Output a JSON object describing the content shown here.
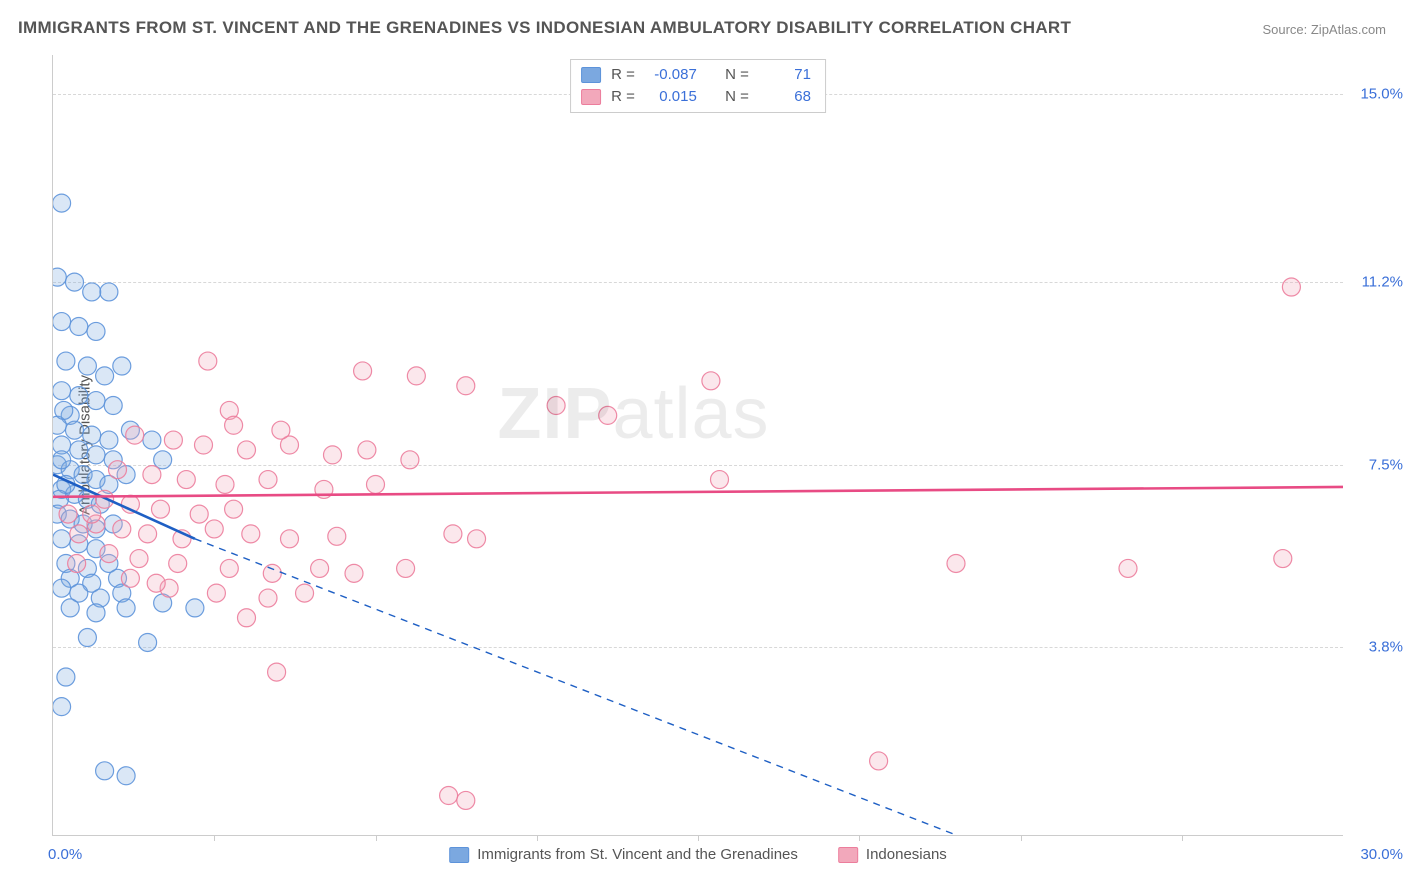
{
  "title": "IMMIGRANTS FROM ST. VINCENT AND THE GRENADINES VS INDONESIAN AMBULATORY DISABILITY CORRELATION CHART",
  "source": "Source: ZipAtlas.com",
  "watermark_a": "ZIP",
  "watermark_b": "atlas",
  "ylabel": "Ambulatory Disability",
  "chart": {
    "type": "scatter",
    "xlim": [
      0.0,
      30.0
    ],
    "ylim": [
      0.0,
      15.8
    ],
    "yticks": [
      {
        "v": 3.8,
        "label": "3.8%"
      },
      {
        "v": 7.5,
        "label": "7.5%"
      },
      {
        "v": 11.2,
        "label": "11.2%"
      },
      {
        "v": 15.0,
        "label": "15.0%"
      }
    ],
    "xtick_minor": [
      3.75,
      7.5,
      11.25,
      15.0,
      18.75,
      22.5,
      26.25
    ],
    "x_label_min": "0.0%",
    "x_label_max": "30.0%",
    "background_color": "#ffffff",
    "grid_color": "#d8d8d8",
    "marker_radius": 9,
    "marker_fill_opacity": 0.28,
    "marker_stroke_opacity": 0.9,
    "series": [
      {
        "name": "Immigrants from St. Vincent and the Grenadines",
        "color": "#7ba8e0",
        "stroke": "#5d93da",
        "line_color": "#1e5fc4",
        "R": "-0.087",
        "N": "71",
        "trend": {
          "x0": 0.0,
          "y0": 7.3,
          "x1_solid": 3.3,
          "y1_solid": 6.0,
          "x1_dash": 21.0,
          "y1_dash": 0.0
        },
        "points": [
          [
            0.2,
            12.8
          ],
          [
            0.1,
            11.3
          ],
          [
            0.5,
            11.2
          ],
          [
            0.9,
            11.0
          ],
          [
            1.3,
            11.0
          ],
          [
            0.2,
            10.4
          ],
          [
            0.6,
            10.3
          ],
          [
            1.0,
            10.2
          ],
          [
            0.3,
            9.6
          ],
          [
            0.8,
            9.5
          ],
          [
            1.2,
            9.3
          ],
          [
            1.6,
            9.5
          ],
          [
            0.2,
            9.0
          ],
          [
            0.6,
            8.9
          ],
          [
            1.0,
            8.8
          ],
          [
            1.4,
            8.7
          ],
          [
            0.4,
            8.5
          ],
          [
            0.1,
            8.3
          ],
          [
            0.5,
            8.2
          ],
          [
            0.9,
            8.1
          ],
          [
            1.3,
            8.0
          ],
          [
            1.8,
            8.2
          ],
          [
            0.2,
            7.9
          ],
          [
            0.6,
            7.8
          ],
          [
            1.0,
            7.7
          ],
          [
            1.4,
            7.6
          ],
          [
            0.1,
            7.5
          ],
          [
            0.4,
            7.4
          ],
          [
            0.7,
            7.3
          ],
          [
            1.0,
            7.2
          ],
          [
            1.3,
            7.1
          ],
          [
            1.7,
            7.3
          ],
          [
            0.2,
            7.0
          ],
          [
            0.5,
            6.9
          ],
          [
            0.8,
            6.8
          ],
          [
            1.1,
            6.7
          ],
          [
            0.1,
            6.5
          ],
          [
            0.4,
            6.4
          ],
          [
            0.7,
            6.3
          ],
          [
            1.0,
            6.2
          ],
          [
            1.4,
            6.3
          ],
          [
            0.2,
            6.0
          ],
          [
            0.6,
            5.9
          ],
          [
            1.0,
            5.8
          ],
          [
            0.3,
            5.5
          ],
          [
            0.8,
            5.4
          ],
          [
            1.3,
            5.5
          ],
          [
            0.4,
            5.2
          ],
          [
            0.9,
            5.1
          ],
          [
            1.5,
            5.2
          ],
          [
            0.2,
            5.0
          ],
          [
            0.6,
            4.9
          ],
          [
            1.1,
            4.8
          ],
          [
            1.6,
            4.9
          ],
          [
            0.4,
            4.6
          ],
          [
            1.0,
            4.5
          ],
          [
            1.7,
            4.6
          ],
          [
            2.55,
            4.7
          ],
          [
            3.3,
            4.6
          ],
          [
            2.3,
            8.0
          ],
          [
            2.55,
            7.6
          ],
          [
            0.8,
            4.0
          ],
          [
            2.2,
            3.9
          ],
          [
            0.3,
            3.2
          ],
          [
            0.2,
            2.6
          ],
          [
            1.2,
            1.3
          ],
          [
            1.7,
            1.2
          ],
          [
            0.3,
            7.1
          ],
          [
            0.2,
            7.6
          ],
          [
            0.15,
            6.8
          ],
          [
            0.25,
            8.6
          ]
        ]
      },
      {
        "name": "Indonesians",
        "color": "#f2a8bb",
        "stroke": "#ec7d9c",
        "line_color": "#e84b84",
        "R": "0.015",
        "N": "68",
        "trend": {
          "x0": 0.0,
          "y0": 6.85,
          "x1_solid": 30.0,
          "y1_solid": 7.05,
          "x1_dash": 30.0,
          "y1_dash": 7.05
        },
        "points": [
          [
            28.8,
            11.1
          ],
          [
            3.6,
            9.6
          ],
          [
            7.2,
            9.4
          ],
          [
            8.45,
            9.3
          ],
          [
            9.6,
            9.1
          ],
          [
            15.3,
            9.2
          ],
          [
            4.1,
            8.6
          ],
          [
            11.7,
            8.7
          ],
          [
            12.9,
            8.5
          ],
          [
            1.9,
            8.1
          ],
          [
            2.8,
            8.0
          ],
          [
            3.5,
            7.9
          ],
          [
            4.5,
            7.8
          ],
          [
            5.5,
            7.9
          ],
          [
            6.5,
            7.7
          ],
          [
            7.3,
            7.8
          ],
          [
            8.3,
            7.6
          ],
          [
            4.2,
            8.3
          ],
          [
            5.3,
            8.2
          ],
          [
            1.5,
            7.4
          ],
          [
            2.3,
            7.3
          ],
          [
            3.1,
            7.2
          ],
          [
            4.0,
            7.1
          ],
          [
            5.0,
            7.2
          ],
          [
            6.3,
            7.0
          ],
          [
            7.5,
            7.1
          ],
          [
            15.5,
            7.2
          ],
          [
            1.2,
            6.8
          ],
          [
            1.8,
            6.7
          ],
          [
            2.5,
            6.6
          ],
          [
            3.4,
            6.5
          ],
          [
            4.2,
            6.6
          ],
          [
            1.0,
            6.3
          ],
          [
            1.6,
            6.2
          ],
          [
            2.2,
            6.1
          ],
          [
            3.0,
            6.0
          ],
          [
            3.75,
            6.2
          ],
          [
            4.6,
            6.1
          ],
          [
            5.5,
            6.0
          ],
          [
            6.6,
            6.05
          ],
          [
            9.3,
            6.1
          ],
          [
            9.85,
            6.0
          ],
          [
            1.3,
            5.7
          ],
          [
            2.0,
            5.6
          ],
          [
            2.9,
            5.5
          ],
          [
            4.1,
            5.4
          ],
          [
            5.1,
            5.3
          ],
          [
            6.2,
            5.4
          ],
          [
            7.0,
            5.3
          ],
          [
            8.2,
            5.4
          ],
          [
            21.0,
            5.5
          ],
          [
            25.0,
            5.4
          ],
          [
            28.6,
            5.6
          ],
          [
            2.7,
            5.0
          ],
          [
            3.8,
            4.9
          ],
          [
            5.0,
            4.8
          ],
          [
            5.85,
            4.9
          ],
          [
            4.5,
            4.4
          ],
          [
            1.8,
            5.2
          ],
          [
            2.4,
            5.1
          ],
          [
            5.2,
            3.3
          ],
          [
            19.2,
            1.5
          ],
          [
            9.2,
            0.8
          ],
          [
            9.6,
            0.7
          ],
          [
            0.35,
            6.5
          ],
          [
            0.6,
            6.1
          ],
          [
            0.9,
            6.5
          ],
          [
            0.55,
            5.5
          ]
        ]
      }
    ]
  },
  "legend_labels": {
    "R": "R =",
    "N": "N ="
  }
}
